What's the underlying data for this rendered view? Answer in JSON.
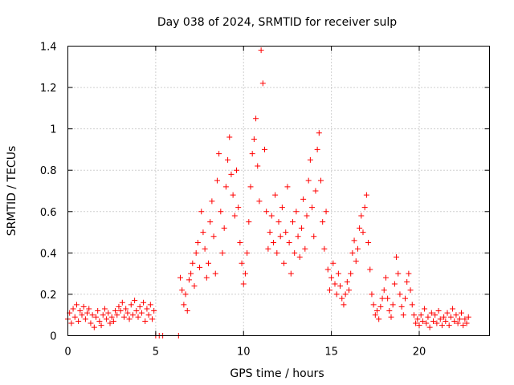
{
  "chart_data": {
    "type": "scatter",
    "title": "Day 038 of 2024, SRMTID for receiver sulp",
    "xlabel": "GPS time / hours",
    "ylabel": "SRMTID / TECUs",
    "xlim": [
      0,
      24
    ],
    "ylim": [
      0,
      1.4
    ],
    "xticks": [
      0,
      5,
      10,
      15,
      20
    ],
    "xtick_labels": [
      "0",
      "5",
      "10",
      "15",
      "20"
    ],
    "yticks": [
      0,
      0.2,
      0.4,
      0.6,
      0.8,
      1.0,
      1.2,
      1.4
    ],
    "ytick_labels": [
      "0",
      "0.2",
      "0.4",
      "0.6",
      "0.8",
      "1",
      "1.2",
      "1.4"
    ],
    "grid": true,
    "marker": "plus",
    "series": [
      {
        "name": "SRMTID",
        "color": "#ff0000",
        "points": [
          [
            0.0,
            0.08
          ],
          [
            0.1,
            0.11
          ],
          [
            0.2,
            0.06
          ],
          [
            0.3,
            0.13
          ],
          [
            0.4,
            0.09
          ],
          [
            0.5,
            0.15
          ],
          [
            0.6,
            0.07
          ],
          [
            0.7,
            0.12
          ],
          [
            0.8,
            0.1
          ],
          [
            0.9,
            0.14
          ],
          [
            1.0,
            0.08
          ],
          [
            1.1,
            0.11
          ],
          [
            1.2,
            0.13
          ],
          [
            1.3,
            0.06
          ],
          [
            1.4,
            0.1
          ],
          [
            1.5,
            0.04
          ],
          [
            1.6,
            0.09
          ],
          [
            1.7,
            0.12
          ],
          [
            1.8,
            0.07
          ],
          [
            1.9,
            0.05
          ],
          [
            2.0,
            0.1
          ],
          [
            2.1,
            0.13
          ],
          [
            2.2,
            0.08
          ],
          [
            2.3,
            0.11
          ],
          [
            2.4,
            0.06
          ],
          [
            2.5,
            0.09
          ],
          [
            2.6,
            0.07
          ],
          [
            2.7,
            0.12
          ],
          [
            2.8,
            0.1
          ],
          [
            2.9,
            0.14
          ],
          [
            3.0,
            0.12
          ],
          [
            3.1,
            0.16
          ],
          [
            3.2,
            0.09
          ],
          [
            3.3,
            0.13
          ],
          [
            3.4,
            0.11
          ],
          [
            3.5,
            0.08
          ],
          [
            3.6,
            0.15
          ],
          [
            3.7,
            0.1
          ],
          [
            3.8,
            0.17
          ],
          [
            3.9,
            0.12
          ],
          [
            4.0,
            0.09
          ],
          [
            4.1,
            0.14
          ],
          [
            4.2,
            0.11
          ],
          [
            4.3,
            0.16
          ],
          [
            4.4,
            0.07
          ],
          [
            4.5,
            0.13
          ],
          [
            4.6,
            0.1
          ],
          [
            4.7,
            0.15
          ],
          [
            4.8,
            0.08
          ],
          [
            4.9,
            0.12
          ],
          [
            5.0,
            0.0
          ],
          [
            5.2,
            0.0
          ],
          [
            5.4,
            0.0
          ],
          [
            6.3,
            0.0
          ],
          [
            6.4,
            0.28
          ],
          [
            6.5,
            0.22
          ],
          [
            6.6,
            0.15
          ],
          [
            6.7,
            0.2
          ],
          [
            6.8,
            0.12
          ],
          [
            6.9,
            0.27
          ],
          [
            7.0,
            0.3
          ],
          [
            7.1,
            0.35
          ],
          [
            7.2,
            0.24
          ],
          [
            7.3,
            0.4
          ],
          [
            7.4,
            0.45
          ],
          [
            7.5,
            0.33
          ],
          [
            7.6,
            0.6
          ],
          [
            7.7,
            0.5
          ],
          [
            7.8,
            0.42
          ],
          [
            7.9,
            0.28
          ],
          [
            8.0,
            0.35
          ],
          [
            8.1,
            0.55
          ],
          [
            8.2,
            0.65
          ],
          [
            8.3,
            0.48
          ],
          [
            8.4,
            0.3
          ],
          [
            8.5,
            0.75
          ],
          [
            8.6,
            0.88
          ],
          [
            8.7,
            0.6
          ],
          [
            8.8,
            0.4
          ],
          [
            8.9,
            0.52
          ],
          [
            9.0,
            0.72
          ],
          [
            9.1,
            0.85
          ],
          [
            9.2,
            0.96
          ],
          [
            9.3,
            0.78
          ],
          [
            9.4,
            0.68
          ],
          [
            9.5,
            0.58
          ],
          [
            9.6,
            0.8
          ],
          [
            9.7,
            0.62
          ],
          [
            9.8,
            0.45
          ],
          [
            9.9,
            0.35
          ],
          [
            10.0,
            0.25
          ],
          [
            10.1,
            0.3
          ],
          [
            10.2,
            0.4
          ],
          [
            10.3,
            0.55
          ],
          [
            10.4,
            0.72
          ],
          [
            10.5,
            0.88
          ],
          [
            10.6,
            0.95
          ],
          [
            10.7,
            1.05
          ],
          [
            10.8,
            0.82
          ],
          [
            10.9,
            0.65
          ],
          [
            11.0,
            1.38
          ],
          [
            11.1,
            1.22
          ],
          [
            11.2,
            0.9
          ],
          [
            11.3,
            0.6
          ],
          [
            11.4,
            0.42
          ],
          [
            11.5,
            0.5
          ],
          [
            11.6,
            0.58
          ],
          [
            11.7,
            0.45
          ],
          [
            11.8,
            0.68
          ],
          [
            11.9,
            0.4
          ],
          [
            12.0,
            0.55
          ],
          [
            12.1,
            0.48
          ],
          [
            12.2,
            0.62
          ],
          [
            12.3,
            0.35
          ],
          [
            12.4,
            0.5
          ],
          [
            12.5,
            0.72
          ],
          [
            12.6,
            0.45
          ],
          [
            12.7,
            0.3
          ],
          [
            12.8,
            0.55
          ],
          [
            12.9,
            0.4
          ],
          [
            13.0,
            0.6
          ],
          [
            13.1,
            0.48
          ],
          [
            13.2,
            0.38
          ],
          [
            13.3,
            0.52
          ],
          [
            13.4,
            0.66
          ],
          [
            13.5,
            0.42
          ],
          [
            13.6,
            0.58
          ],
          [
            13.7,
            0.75
          ],
          [
            13.8,
            0.85
          ],
          [
            13.9,
            0.62
          ],
          [
            14.0,
            0.48
          ],
          [
            14.1,
            0.7
          ],
          [
            14.2,
            0.9
          ],
          [
            14.3,
            0.98
          ],
          [
            14.4,
            0.75
          ],
          [
            14.5,
            0.55
          ],
          [
            14.6,
            0.42
          ],
          [
            14.7,
            0.6
          ],
          [
            14.8,
            0.32
          ],
          [
            14.9,
            0.22
          ],
          [
            15.0,
            0.28
          ],
          [
            15.1,
            0.35
          ],
          [
            15.2,
            0.25
          ],
          [
            15.3,
            0.2
          ],
          [
            15.4,
            0.3
          ],
          [
            15.5,
            0.24
          ],
          [
            15.6,
            0.18
          ],
          [
            15.7,
            0.15
          ],
          [
            15.8,
            0.2
          ],
          [
            15.9,
            0.26
          ],
          [
            16.0,
            0.22
          ],
          [
            16.1,
            0.3
          ],
          [
            16.2,
            0.4
          ],
          [
            16.3,
            0.46
          ],
          [
            16.4,
            0.36
          ],
          [
            16.5,
            0.42
          ],
          [
            16.6,
            0.52
          ],
          [
            16.7,
            0.58
          ],
          [
            16.8,
            0.5
          ],
          [
            16.9,
            0.62
          ],
          [
            17.0,
            0.68
          ],
          [
            17.1,
            0.45
          ],
          [
            17.2,
            0.32
          ],
          [
            17.3,
            0.2
          ],
          [
            17.4,
            0.15
          ],
          [
            17.5,
            0.1
          ],
          [
            17.6,
            0.12
          ],
          [
            17.7,
            0.08
          ],
          [
            17.8,
            0.14
          ],
          [
            17.9,
            0.18
          ],
          [
            18.0,
            0.22
          ],
          [
            18.1,
            0.28
          ],
          [
            18.2,
            0.18
          ],
          [
            18.3,
            0.12
          ],
          [
            18.4,
            0.09
          ],
          [
            18.5,
            0.15
          ],
          [
            18.6,
            0.25
          ],
          [
            18.7,
            0.38
          ],
          [
            18.8,
            0.3
          ],
          [
            18.9,
            0.2
          ],
          [
            19.0,
            0.14
          ],
          [
            19.1,
            0.1
          ],
          [
            19.2,
            0.18
          ],
          [
            19.3,
            0.26
          ],
          [
            19.4,
            0.3
          ],
          [
            19.5,
            0.22
          ],
          [
            19.6,
            0.15
          ],
          [
            19.7,
            0.1
          ],
          [
            19.8,
            0.06
          ],
          [
            19.9,
            0.08
          ],
          [
            20.0,
            0.05
          ],
          [
            20.1,
            0.1
          ],
          [
            20.2,
            0.07
          ],
          [
            20.3,
            0.13
          ],
          [
            20.4,
            0.06
          ],
          [
            20.5,
            0.09
          ],
          [
            20.6,
            0.04
          ],
          [
            20.7,
            0.11
          ],
          [
            20.8,
            0.07
          ],
          [
            20.9,
            0.1
          ],
          [
            21.0,
            0.06
          ],
          [
            21.1,
            0.12
          ],
          [
            21.2,
            0.08
          ],
          [
            21.3,
            0.05
          ],
          [
            21.4,
            0.09
          ],
          [
            21.5,
            0.07
          ],
          [
            21.6,
            0.11
          ],
          [
            21.7,
            0.05
          ],
          [
            21.8,
            0.09
          ],
          [
            21.9,
            0.13
          ],
          [
            22.0,
            0.07
          ],
          [
            22.1,
            0.1
          ],
          [
            22.2,
            0.06
          ],
          [
            22.3,
            0.08
          ],
          [
            22.4,
            0.11
          ],
          [
            22.5,
            0.05
          ],
          [
            22.6,
            0.08
          ],
          [
            22.7,
            0.06
          ],
          [
            22.8,
            0.09
          ]
        ]
      }
    ]
  }
}
